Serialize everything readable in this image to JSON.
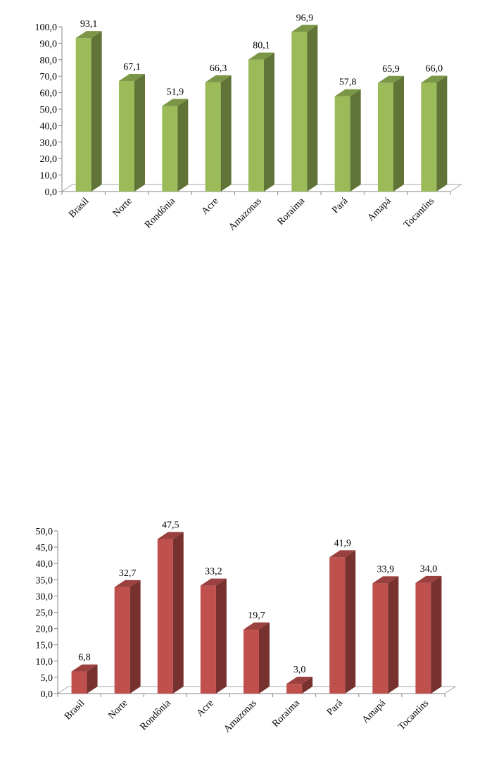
{
  "chart_data": [
    {
      "type": "bar",
      "categories": [
        "Brasil",
        "Norte",
        "Rondônia",
        "Acre",
        "Amazonas",
        "Roraima",
        "Pará",
        "Amapá",
        "Tocantins"
      ],
      "values": [
        93.1,
        67.1,
        51.9,
        66.3,
        80.1,
        96.9,
        57.8,
        65.9,
        66.0
      ],
      "data_labels": [
        "93,1",
        "67,1",
        "51,9",
        "66,3",
        "80,1",
        "96,9",
        "57,8",
        "65,9",
        "66,0"
      ],
      "y_ticks": [
        "0,0",
        "10,0",
        "20,0",
        "30,0",
        "40,0",
        "50,0",
        "60,0",
        "70,0",
        "80,0",
        "90,0",
        "100,0"
      ],
      "ylim": [
        0,
        100
      ],
      "bar_color": "#9BBB59",
      "title": "",
      "xlabel": "",
      "ylabel": ""
    },
    {
      "type": "bar",
      "categories": [
        "Brasil",
        "Norte",
        "Rondônia",
        "Acre",
        "Amazonas",
        "Roraima",
        "Pará",
        "Amapá",
        "Tocantins"
      ],
      "values": [
        6.8,
        32.7,
        47.5,
        33.2,
        19.7,
        3.0,
        41.9,
        33.9,
        34.0
      ],
      "data_labels": [
        "6,8",
        "32,7",
        "47,5",
        "33,2",
        "19,7",
        "3,0",
        "41,9",
        "33,9",
        "34,0"
      ],
      "y_ticks": [
        "0,0",
        "5,0",
        "10,0",
        "15,0",
        "20,0",
        "25,0",
        "30,0",
        "35,0",
        "40,0",
        "45,0",
        "50,0"
      ],
      "ylim": [
        0,
        50
      ],
      "bar_color": "#C0504D",
      "title": "",
      "xlabel": "",
      "ylabel": ""
    }
  ]
}
